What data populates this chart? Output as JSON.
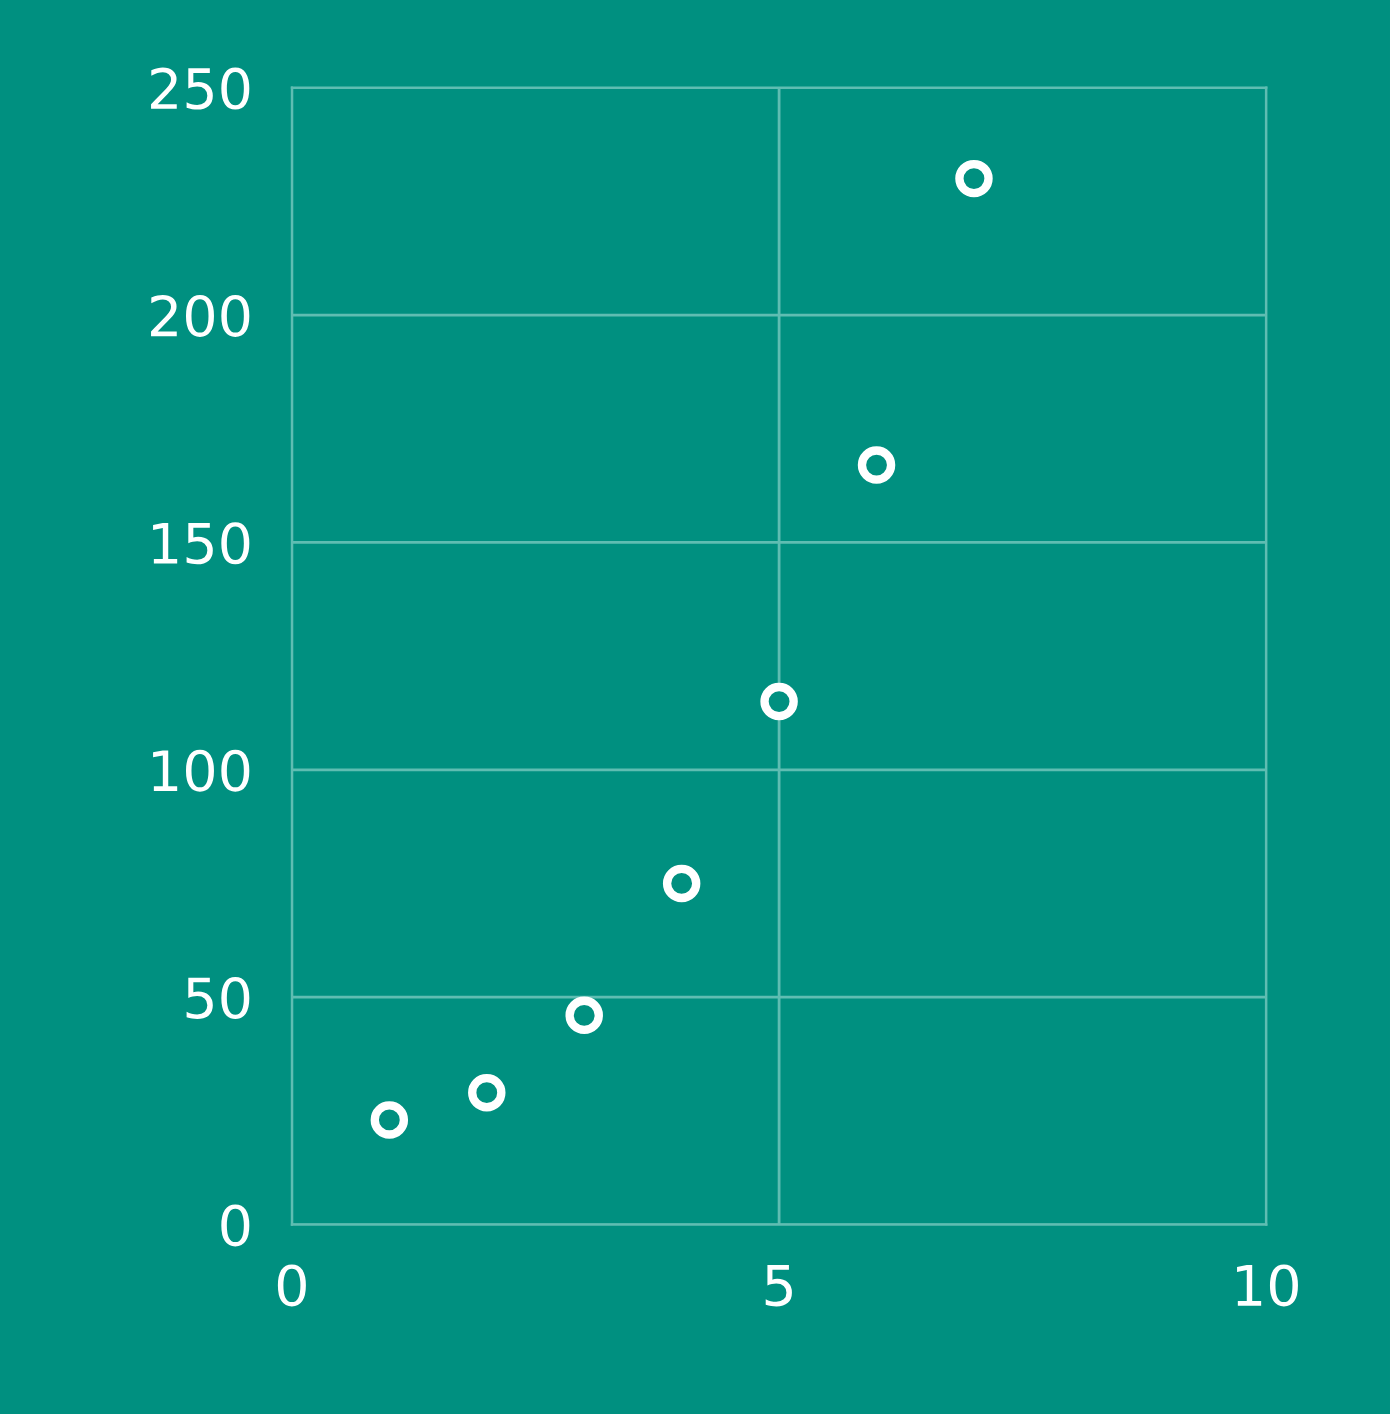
{
  "chart_data": {
    "type": "scatter",
    "x": [
      1,
      2,
      3,
      4,
      5,
      6,
      7
    ],
    "values": [
      23,
      29,
      46,
      75,
      115,
      167,
      230
    ],
    "color": "#ffffff",
    "marker": "circle",
    "xlim": [
      0,
      10
    ],
    "xticks": [
      0,
      5,
      10
    ],
    "ylim": [
      0,
      250
    ],
    "yticks": [
      0,
      50,
      100,
      150,
      200,
      250
    ],
    "grid": true
  }
}
